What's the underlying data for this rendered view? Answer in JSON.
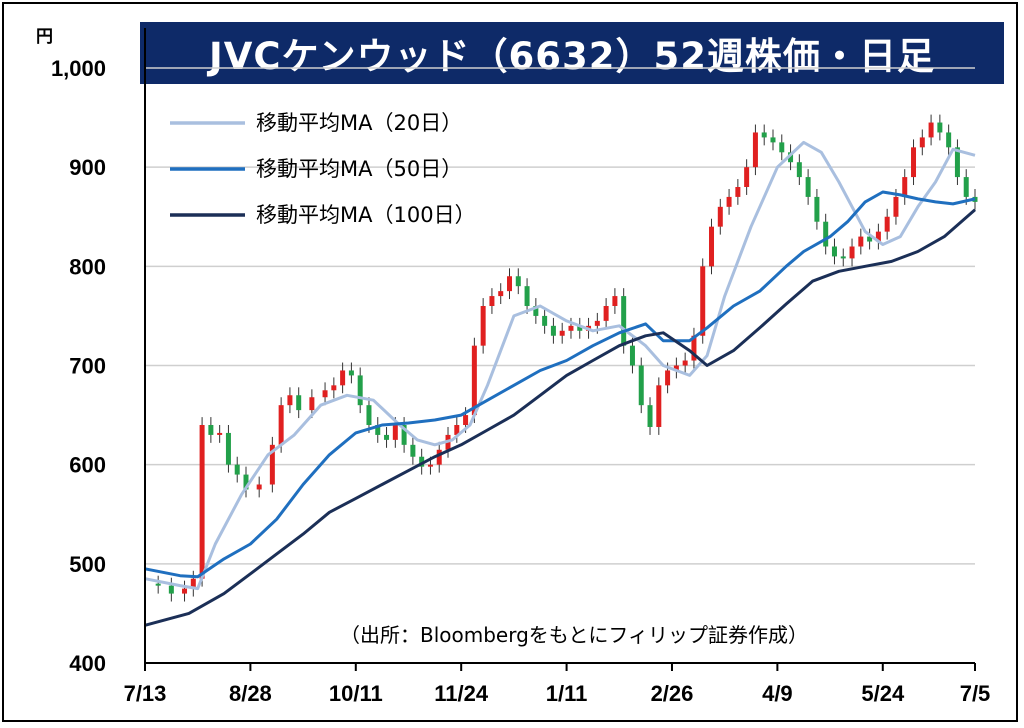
{
  "title": "JVCケンウッド（6632）52週株価・日足",
  "unit_label": "円",
  "source_note": "（出所：Bloombergをもとにフィリップ証券作成）",
  "legend": [
    {
      "label": "移動平均MA（20日）",
      "color": "#a9bfdf"
    },
    {
      "label": "移動平均MA（50日）",
      "color": "#1f6fbf"
    },
    {
      "label": "移動平均MA（100日）",
      "color": "#1b2f57"
    }
  ],
  "colors": {
    "up": "#e02020",
    "down": "#22a04a",
    "title_bg": "#0e2a68",
    "grid": "#cfcfcf"
  },
  "chart_data": {
    "type": "line",
    "title": "JVCケンウッド（6632）52週株価・日足",
    "ylabel": "円",
    "xlabel": "",
    "ylim": [
      400,
      1000
    ],
    "y_ticks": [
      "400",
      "500",
      "600",
      "700",
      "800",
      "900",
      "1,000"
    ],
    "x_ticks": [
      "7/13",
      "8/28",
      "10/11",
      "11/24",
      "1/11",
      "2/26",
      "4/9",
      "5/24",
      "7/5"
    ],
    "grid": true,
    "legend_position": "top-left",
    "candlestick_close_approx": [
      [
        0,
        480
      ],
      [
        3,
        478
      ],
      [
        6,
        470
      ],
      [
        9,
        475
      ],
      [
        11,
        485
      ],
      [
        13,
        640
      ],
      [
        15,
        630
      ],
      [
        17,
        632
      ],
      [
        19,
        600
      ],
      [
        21,
        590
      ],
      [
        23,
        575
      ],
      [
        26,
        580
      ],
      [
        29,
        620
      ],
      [
        31,
        660
      ],
      [
        33,
        670
      ],
      [
        35,
        655
      ],
      [
        38,
        668
      ],
      [
        41,
        675
      ],
      [
        43,
        680
      ],
      [
        45,
        695
      ],
      [
        47,
        690
      ],
      [
        49,
        660
      ],
      [
        51,
        640
      ],
      [
        53,
        630
      ],
      [
        55,
        625
      ],
      [
        57,
        640
      ],
      [
        59,
        620
      ],
      [
        61,
        608
      ],
      [
        63,
        598
      ],
      [
        65,
        600
      ],
      [
        67,
        615
      ],
      [
        69,
        630
      ],
      [
        71,
        640
      ],
      [
        73,
        650
      ],
      [
        75,
        720
      ],
      [
        77,
        760
      ],
      [
        79,
        770
      ],
      [
        81,
        775
      ],
      [
        83,
        790
      ],
      [
        85,
        780
      ],
      [
        87,
        760
      ],
      [
        89,
        750
      ],
      [
        91,
        740
      ],
      [
        93,
        730
      ],
      [
        95,
        735
      ],
      [
        97,
        740
      ],
      [
        99,
        735
      ],
      [
        101,
        740
      ],
      [
        103,
        745
      ],
      [
        105,
        760
      ],
      [
        107,
        770
      ],
      [
        109,
        720
      ],
      [
        111,
        700
      ],
      [
        113,
        660
      ],
      [
        115,
        638
      ],
      [
        117,
        680
      ],
      [
        119,
        695
      ],
      [
        121,
        700
      ],
      [
        123,
        705
      ],
      [
        125,
        730
      ],
      [
        127,
        800
      ],
      [
        129,
        840
      ],
      [
        131,
        860
      ],
      [
        133,
        870
      ],
      [
        135,
        880
      ],
      [
        137,
        900
      ],
      [
        139,
        935
      ],
      [
        141,
        930
      ],
      [
        143,
        925
      ],
      [
        145,
        915
      ],
      [
        147,
        905
      ],
      [
        149,
        890
      ],
      [
        151,
        870
      ],
      [
        153,
        845
      ],
      [
        155,
        820
      ],
      [
        157,
        810
      ],
      [
        159,
        808
      ],
      [
        161,
        820
      ],
      [
        163,
        830
      ],
      [
        165,
        825
      ],
      [
        167,
        835
      ],
      [
        169,
        850
      ],
      [
        171,
        870
      ],
      [
        173,
        890
      ],
      [
        175,
        920
      ],
      [
        177,
        930
      ],
      [
        179,
        945
      ],
      [
        181,
        935
      ],
      [
        183,
        920
      ],
      [
        185,
        890
      ],
      [
        187,
        870
      ],
      [
        189,
        865
      ]
    ],
    "series": [
      {
        "name": "移動平均MA（20日）",
        "x": [
          0,
          8,
          12,
          16,
          22,
          28,
          34,
          40,
          46,
          52,
          58,
          62,
          66,
          70,
          74,
          78,
          84,
          90,
          96,
          102,
          108,
          114,
          118,
          124,
          128,
          132,
          138,
          144,
          150,
          154,
          158,
          164,
          168,
          172,
          176,
          180,
          184,
          189
        ],
        "y": [
          485,
          478,
          475,
          520,
          570,
          610,
          630,
          660,
          670,
          665,
          640,
          625,
          620,
          625,
          640,
          680,
          750,
          760,
          745,
          735,
          740,
          720,
          700,
          690,
          710,
          770,
          840,
          900,
          925,
          915,
          885,
          835,
          822,
          830,
          860,
          885,
          918,
          912
        ]
      },
      {
        "name": "移動平均MA（50日）",
        "x": [
          0,
          8,
          12,
          18,
          24,
          30,
          36,
          42,
          48,
          54,
          60,
          66,
          72,
          78,
          84,
          90,
          96,
          102,
          108,
          114,
          118,
          124,
          128,
          134,
          140,
          146,
          150,
          156,
          160,
          164,
          168,
          172,
          176,
          180,
          184,
          189
        ],
        "y": [
          495,
          488,
          487,
          505,
          520,
          545,
          580,
          610,
          632,
          640,
          642,
          645,
          650,
          665,
          680,
          695,
          705,
          720,
          733,
          742,
          725,
          725,
          738,
          760,
          775,
          800,
          815,
          830,
          845,
          865,
          875,
          872,
          868,
          865,
          863,
          868
        ]
      },
      {
        "name": "移動平均MA（100日）",
        "x": [
          0,
          10,
          18,
          24,
          30,
          36,
          42,
          48,
          54,
          60,
          66,
          72,
          78,
          84,
          90,
          96,
          102,
          108,
          114,
          118,
          124,
          128,
          134,
          140,
          146,
          152,
          158,
          164,
          170,
          176,
          182,
          189
        ],
        "y": [
          438,
          450,
          470,
          490,
          510,
          530,
          552,
          566,
          580,
          594,
          608,
          620,
          635,
          650,
          670,
          690,
          705,
          720,
          730,
          733,
          715,
          700,
          715,
          738,
          762,
          785,
          795,
          800,
          805,
          815,
          830,
          857
        ]
      }
    ]
  }
}
